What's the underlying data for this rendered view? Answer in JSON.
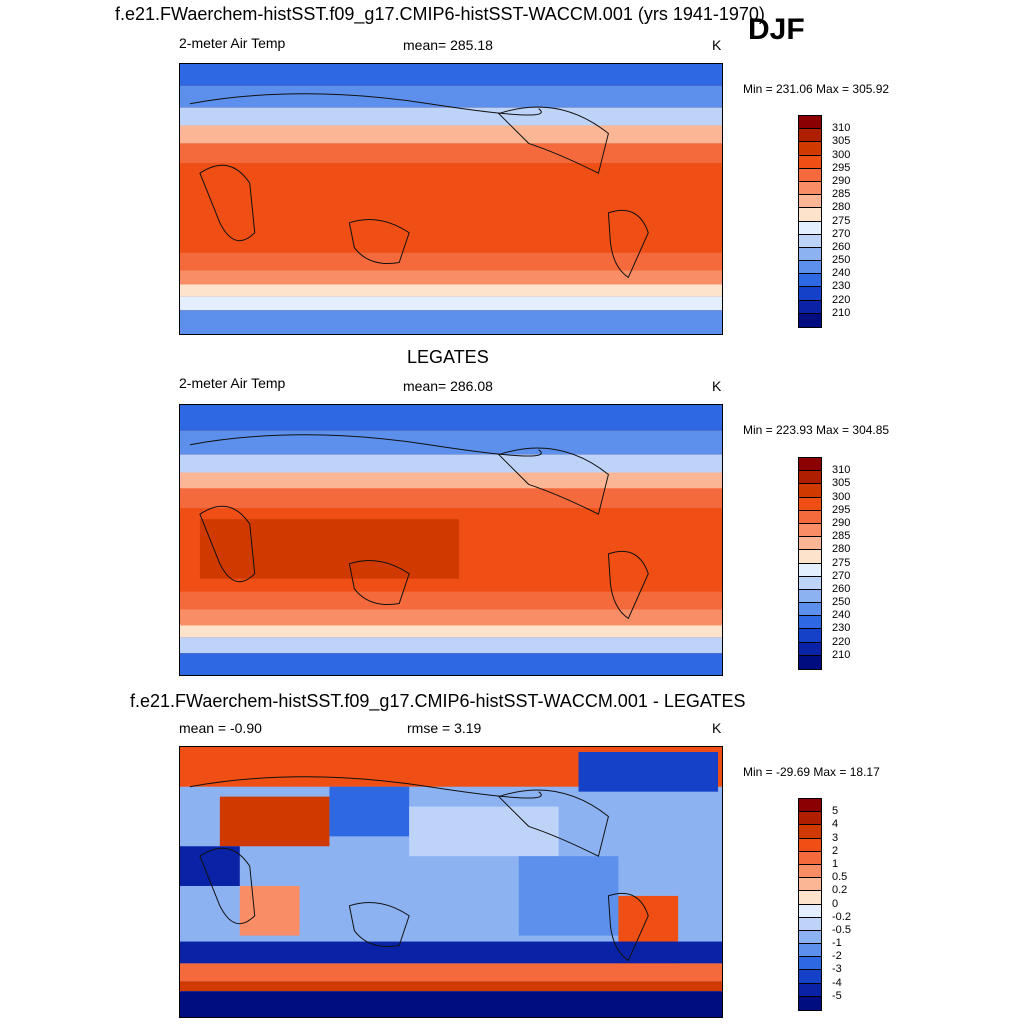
{
  "figure": {
    "main_title": "f.e21.FWaerchem-histSST.f09_g17.CMIP6-histSST-WACCM.001 (yrs 1941-1970)",
    "season": "DJF"
  },
  "panels": [
    {
      "id": "model",
      "header": "",
      "left_label": "2-meter Air Temp",
      "center_label": "mean= 285.18",
      "right_label": "K",
      "minmax": "Min = 231.06 Max = 305.92",
      "variable": "2-meter Air Temp",
      "mean": 285.18,
      "min": 231.06,
      "max": 305.92,
      "units": "K",
      "colorbar": {
        "labels": [
          "310",
          "305",
          "300",
          "295",
          "290",
          "285",
          "280",
          "275",
          "270",
          "260",
          "250",
          "240",
          "230",
          "220",
          "210"
        ],
        "colors": [
          "#8b0000",
          "#b01e00",
          "#d03a00",
          "#ef4e14",
          "#f56a3c",
          "#f98e66",
          "#fbb795",
          "#fde3cc",
          "#e3efff",
          "#bdd3f7",
          "#8db2f2",
          "#5c90ec",
          "#2f68e3",
          "#1441c7",
          "#0a22a6",
          "#000d80"
        ]
      }
    },
    {
      "id": "obs",
      "header": "LEGATES",
      "left_label": "2-meter Air Temp",
      "center_label": "mean= 286.08",
      "right_label": "K",
      "minmax": "Min = 223.93 Max = 304.85",
      "variable": "2-meter Air Temp",
      "mean": 286.08,
      "min": 223.93,
      "max": 304.85,
      "units": "K",
      "colorbar": {
        "labels": [
          "310",
          "305",
          "300",
          "295",
          "290",
          "285",
          "280",
          "275",
          "270",
          "260",
          "250",
          "240",
          "230",
          "220",
          "210"
        ],
        "colors": [
          "#8b0000",
          "#b01e00",
          "#d03a00",
          "#ef4e14",
          "#f56a3c",
          "#f98e66",
          "#fbb795",
          "#fde3cc",
          "#e3efff",
          "#bdd3f7",
          "#8db2f2",
          "#5c90ec",
          "#2f68e3",
          "#1441c7",
          "#0a22a6",
          "#000d80"
        ]
      }
    },
    {
      "id": "diff",
      "header": "f.e21.FWaerchem-histSST.f09_g17.CMIP6-histSST-WACCM.001 - LEGATES",
      "left_label": "mean =  -0.90",
      "center_label": "rmse =   3.19",
      "right_label": "K",
      "minmax": "Min = -29.69 Max =  18.17",
      "mean": -0.9,
      "rmse": 3.19,
      "min": -29.69,
      "max": 18.17,
      "units": "K",
      "colorbar": {
        "labels": [
          "5",
          "4",
          "3",
          "2",
          "1",
          "0.5",
          "0.2",
          "0",
          "-0.2",
          "-0.5",
          "-1",
          "-2",
          "-3",
          "-4",
          "-5"
        ],
        "colors": [
          "#8b0000",
          "#b01e00",
          "#d03a00",
          "#ef4e14",
          "#f56a3c",
          "#f98e66",
          "#fbb795",
          "#fde3cc",
          "#e3efff",
          "#bdd3f7",
          "#8db2f2",
          "#5c90ec",
          "#2f68e3",
          "#1441c7",
          "#0a22a6",
          "#000d80"
        ]
      }
    }
  ],
  "map_colors": {
    "ocean_line": "#1a1a1a",
    "polar": "#2f68e3",
    "cold": "#5c90ec",
    "cool": "#bdd3f7",
    "mild": "#fde3cc",
    "warm": "#f98e66",
    "hot": "#ef4e14",
    "hottest": "#d03a00"
  }
}
